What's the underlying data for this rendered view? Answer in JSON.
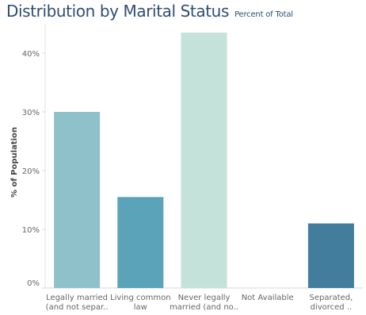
{
  "title": "Distribution by Marital Status",
  "subtitle": "Percent of Total",
  "chart_data": {
    "type": "bar",
    "title": "Distribution by Marital Status",
    "subtitle": "Percent of Total",
    "xlabel": "",
    "ylabel": "% of Population",
    "categories": [
      [
        "Legally married",
        "(and not separ.."
      ],
      [
        "Living common",
        "law"
      ],
      [
        "Never legally",
        "married (and no.."
      ],
      [
        "Not Available"
      ],
      [
        "Separated,",
        "divorced .."
      ]
    ],
    "values": [
      30.0,
      15.5,
      43.5,
      0,
      11.0
    ],
    "colors": [
      "#8fc1cb",
      "#5ba3b9",
      "#c4e2d9",
      "#ffffff",
      "#437d9e"
    ],
    "yticks": [
      0,
      10,
      20,
      30,
      40
    ],
    "ytick_labels": [
      "0%",
      "10%",
      "20%",
      "30%",
      "40%"
    ],
    "ylim": [
      0,
      45
    ],
    "grid": false,
    "legend": "none"
  }
}
